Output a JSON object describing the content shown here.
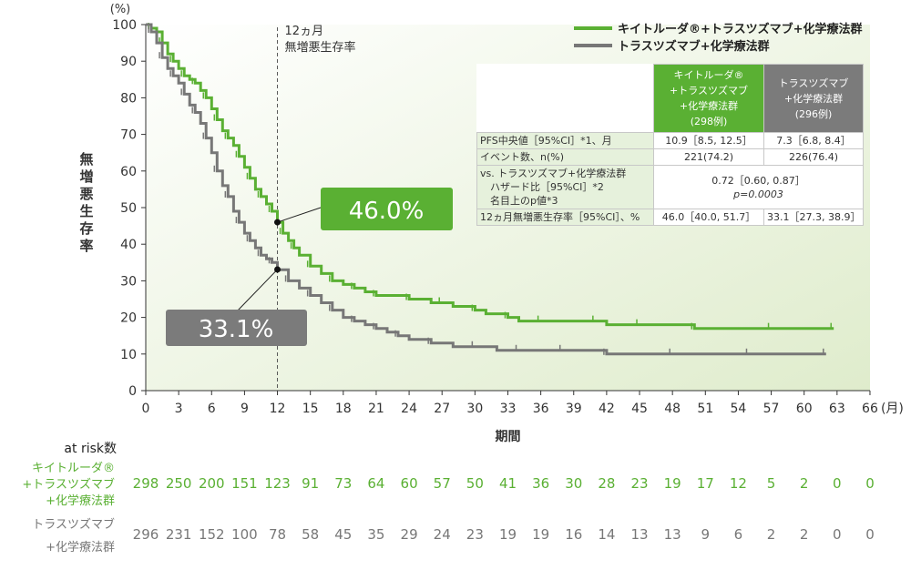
{
  "chart_data": {
    "type": "line",
    "ylabel": "無増悪生存率",
    "yunit": "(%)",
    "xlabel": "期間",
    "xunit": "(月)",
    "xlim": [
      0,
      66
    ],
    "ylim": [
      0,
      100
    ],
    "xticks": [
      0,
      3,
      6,
      9,
      12,
      15,
      18,
      21,
      24,
      27,
      30,
      33,
      36,
      39,
      42,
      45,
      48,
      51,
      54,
      57,
      60,
      63,
      66
    ],
    "yticks": [
      0,
      10,
      20,
      30,
      40,
      50,
      60,
      70,
      80,
      90,
      100
    ],
    "ref_line": {
      "x": 12,
      "label": "12ヵ月\n無増悪生存率"
    },
    "legend": [
      "キイトルーダ®+トラスツズマブ+化学療法群",
      "トラスツズマブ+化学療法群"
    ],
    "series": [
      {
        "name": "キイトルーダ®+トラスツズマブ+化学療法群",
        "color": "#5ab033",
        "x": [
          0,
          0.5,
          1,
          1.5,
          2,
          2.5,
          3,
          3.5,
          4,
          4.5,
          5,
          5.5,
          6,
          6.5,
          7,
          7.5,
          8,
          8.5,
          9,
          9.5,
          10,
          10.5,
          11,
          11.5,
          12,
          12.5,
          13,
          13.5,
          14,
          15,
          16,
          17,
          18,
          19,
          20,
          21,
          22,
          24,
          26,
          27,
          28,
          30,
          31,
          33,
          34,
          36,
          40,
          41,
          42,
          45,
          47,
          50,
          54,
          57,
          60,
          62.7
        ],
        "y": [
          100,
          99,
          98,
          95,
          92,
          90,
          88,
          86,
          85,
          84,
          82,
          80,
          77,
          74,
          71,
          69,
          67,
          64,
          61,
          58,
          55,
          53,
          51,
          49,
          46,
          43,
          41,
          39,
          37,
          34,
          32,
          30,
          29,
          28,
          27,
          26,
          26,
          25,
          24,
          24,
          23,
          22,
          21,
          20,
          19,
          19,
          19,
          19,
          18,
          18,
          18,
          17,
          17,
          17,
          17,
          17
        ],
        "annotation": {
          "x": 12,
          "y": 46.0,
          "label": "46.0%"
        }
      },
      {
        "name": "トラスツズマブ+化学療法群",
        "color": "#777777",
        "x": [
          0,
          0.5,
          1,
          1.5,
          2,
          2.5,
          3,
          3.5,
          4,
          4.5,
          5,
          5.5,
          6,
          6.5,
          7,
          7.5,
          8,
          8.5,
          9,
          9.5,
          10,
          10.5,
          11,
          11.5,
          12,
          13,
          14,
          15,
          16,
          17,
          18,
          19,
          20,
          21,
          22,
          23,
          24,
          26,
          28,
          30,
          32,
          34,
          36,
          38,
          40,
          42,
          45,
          48,
          50,
          55,
          60,
          62
        ],
        "y": [
          100,
          98,
          95,
          91,
          88,
          86,
          84,
          81,
          78,
          76,
          73,
          69,
          65,
          60,
          56,
          53,
          49,
          46,
          43,
          41,
          39,
          37,
          36,
          35,
          33,
          30,
          28,
          26,
          24,
          22,
          20,
          19,
          18,
          17,
          16,
          15,
          14,
          13,
          12,
          12,
          11,
          11,
          11,
          11,
          11,
          10,
          10,
          10,
          10,
          10,
          10,
          10
        ],
        "annotation": {
          "x": 12,
          "y": 33.1,
          "label": "33.1%"
        }
      }
    ],
    "at_risk": {
      "title": "at risk数",
      "times": [
        0,
        3,
        6,
        9,
        12,
        15,
        18,
        21,
        24,
        27,
        30,
        33,
        36,
        39,
        42,
        45,
        48,
        51,
        54,
        57,
        60,
        63,
        66
      ],
      "groups": [
        {
          "label": "キイトルーダ®\n+トラスツズマブ\n+化学療法群",
          "color": "#5ab033",
          "values": [
            298,
            250,
            200,
            151,
            123,
            91,
            73,
            64,
            60,
            57,
            50,
            41,
            36,
            30,
            28,
            23,
            19,
            17,
            12,
            5,
            2,
            0,
            0
          ]
        },
        {
          "label": "トラスツズマブ\n+化学療法群",
          "color": "#777777",
          "values": [
            296,
            231,
            152,
            100,
            78,
            58,
            45,
            35,
            29,
            24,
            23,
            19,
            19,
            16,
            14,
            13,
            13,
            9,
            6,
            2,
            2,
            0,
            0
          ]
        }
      ]
    }
  },
  "table": {
    "headers": [
      "キイトルーダ®\n+トラスツズマブ\n+化学療法群\n(298例)",
      "トラスツズマブ\n+化学療法群\n(296例)"
    ],
    "pfs_label": "PFS中央値［95%CI］*1、月",
    "pfs_a": "10.9［8.5, 12.5］",
    "pfs_b": "7.3［6.8, 8.4］",
    "events_label": "イベント数、n(%)",
    "events_a": "221(74.2)",
    "events_b": "226(76.4)",
    "hr_label": "vs. トラスツズマブ+化学療法群\n　ハザード比［95%CI］*2\n　名目上のp値*3",
    "hr_value": "0.72［0.60, 0.87］",
    "p_value": "p=0.0003",
    "rate_label": "12ヵ月無増悪生存率［95%CI］、%",
    "rate_a": "46.0［40.0, 51.7］",
    "rate_b": "33.1［27.3, 38.9］"
  }
}
